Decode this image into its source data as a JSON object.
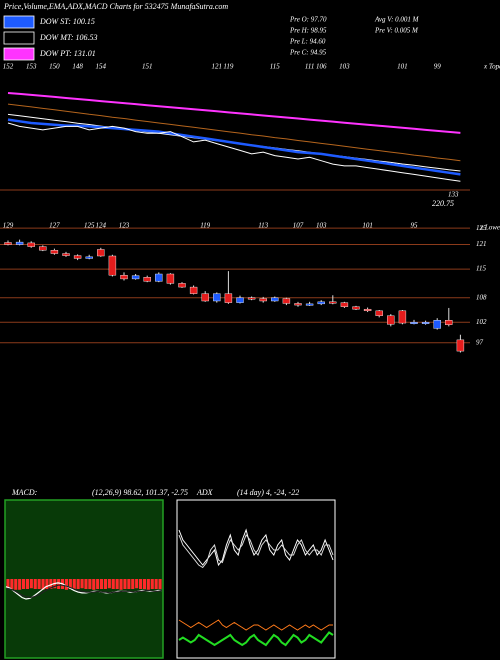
{
  "header": {
    "title": "Price,Volume,EMA,ADX,MACD Charts for 532475 MunafaSutra.com",
    "legend": [
      {
        "label": "DOW ST: 100.15",
        "color": "#1e5bff"
      },
      {
        "label": "DOW MT: 106.53",
        "color": "#000000"
      },
      {
        "label": "DOW PT: 131.01",
        "color": "#ff33ff"
      }
    ],
    "info": [
      "Pre  O: 97.70",
      "Pre  H: 98.95",
      "Pre  L: 94.60",
      "Pre  C: 94.95"
    ],
    "volume": [
      "Avg V: 0.001 M",
      "Pre  V: 0.005 M"
    ]
  },
  "chart_data": [
    {
      "type": "line",
      "categories": [
        "152",
        null,
        "153",
        null,
        "150",
        null,
        "148",
        null,
        "154",
        null,
        null,
        null,
        "151",
        null,
        null,
        null,
        null,
        null,
        "121",
        "119",
        null,
        null,
        null,
        "115",
        null,
        null,
        "111",
        "106",
        null,
        "103",
        null,
        null,
        null,
        null,
        "101",
        null,
        null,
        "99",
        null,
        null
      ],
      "corner_label": "x Topa",
      "annotations": [
        "133",
        "220.75"
      ],
      "ylim": [
        90,
        160
      ],
      "series": [
        {
          "name": "DOW PT: 131.01",
          "color": "#ff33ff",
          "values": [
            149.5,
            149,
            148.4,
            147.8,
            147.2,
            146.6,
            146,
            145.4,
            144.8,
            144.2,
            143.6,
            143,
            142.4,
            141.8,
            141.2,
            140.6,
            140,
            139.4,
            138.8,
            138.2,
            137.6,
            137,
            136.4,
            135.8,
            135.2,
            134.6,
            134,
            133.4,
            132.8,
            132.2,
            131.6,
            131,
            130.4,
            129.8,
            129.2,
            128.6,
            128,
            127.4,
            126.8,
            126.2
          ]
        },
        {
          "color": "#b5651d",
          "values": [
            143,
            142.2,
            141.4,
            140.5,
            139.7,
            138.8,
            138,
            137.1,
            136.3,
            135.4,
            134.6,
            133.7,
            132.9,
            132,
            131.2,
            130.3,
            129.5,
            128.6,
            127.8,
            126.9,
            126.1,
            125.2,
            124.4,
            123.5,
            122.7,
            121.8,
            121,
            120.1,
            119.3,
            118.4,
            117.6,
            116.7,
            115.9,
            115,
            114.2,
            113.3,
            112.5,
            111.6,
            110.8,
            110
          ]
        },
        {
          "name": "DOW MT: 106.53",
          "color": "#ffffff",
          "values": [
            137,
            136.2,
            135.3,
            134.5,
            133.6,
            132.8,
            131.9,
            131.1,
            130.2,
            129.4,
            128.5,
            127.7,
            126.8,
            126,
            125.1,
            124.3,
            123.4,
            122.6,
            121.7,
            120.9,
            120,
            119.2,
            118.3,
            117.5,
            116.6,
            115.8,
            114.9,
            114.1,
            113.2,
            112.4,
            111.5,
            110.7,
            109.8,
            109,
            108.1,
            107.3,
            106.4,
            105.6,
            104.7,
            104
          ]
        },
        {
          "name": "DOW ST: 100.15",
          "color": "#1e5bff",
          "values": [
            134,
            133,
            132,
            131.5,
            131,
            130.5,
            130.5,
            130,
            129.5,
            129,
            128.5,
            128,
            127.5,
            127,
            126,
            125,
            124,
            123,
            122,
            121,
            120,
            119,
            118,
            117,
            116,
            115,
            114.5,
            114,
            113,
            112,
            111,
            110,
            109,
            108,
            107,
            106,
            105,
            104,
            103,
            102
          ]
        },
        {
          "color": "#ffffff",
          "values": [
            132,
            130,
            129,
            128,
            129,
            130,
            130,
            128,
            129,
            130,
            129,
            127,
            126,
            126,
            127,
            124,
            121,
            122,
            120,
            118,
            116,
            114,
            115,
            113,
            112,
            111,
            112,
            110,
            108,
            107,
            107,
            106,
            105,
            104,
            103,
            102,
            101,
            100,
            99,
            98
          ]
        }
      ]
    },
    {
      "type": "candlestick",
      "categories": [
        "129",
        null,
        null,
        null,
        "127",
        null,
        null,
        "125",
        "124",
        null,
        "123",
        null,
        null,
        null,
        null,
        null,
        null,
        "119",
        null,
        null,
        null,
        null,
        "113",
        null,
        null,
        "107",
        null,
        "103",
        null,
        null,
        null,
        "101",
        null,
        null,
        null,
        "95",
        null,
        null,
        null,
        null
      ],
      "corner_label": "x Lowes",
      "up_color": "#1e5bff",
      "down_color": "#e51c1c",
      "ylim": [
        94,
        127
      ],
      "yticks": [
        125,
        121,
        115,
        108,
        102,
        97
      ],
      "open": [
        121.5,
        121.0,
        121.4,
        120.5,
        119.6,
        118.8,
        118.3,
        117.6,
        119.8,
        118.2,
        113.5,
        112.6,
        113.0,
        112.0,
        113.8,
        111.5,
        110.6,
        109.0,
        107.2,
        109.0,
        106.8,
        108.0,
        107.8,
        107.2,
        107.8,
        106.6,
        106.2,
        106.5,
        107.0,
        106.8,
        105.8,
        105.2,
        104.8,
        103.6,
        104.8,
        101.8,
        101.8,
        100.5,
        102.5,
        97.7
      ],
      "high": [
        122.0,
        122.2,
        121.8,
        120.8,
        120.0,
        119.2,
        118.6,
        118.5,
        120.2,
        118.5,
        114.2,
        113.8,
        113.4,
        114.2,
        114.0,
        111.8,
        111.0,
        109.6,
        109.3,
        114.5,
        108.5,
        108.3,
        108.2,
        108.3,
        108.0,
        107.0,
        107.0,
        107.4,
        108.6,
        107.0,
        106.0,
        105.6,
        105.0,
        104.0,
        105.0,
        102.6,
        102.4,
        103.0,
        105.5,
        98.95
      ],
      "low": [
        120.8,
        120.8,
        120.2,
        119.4,
        118.5,
        118.0,
        117.2,
        117.4,
        118.0,
        113.2,
        112.2,
        112.4,
        111.8,
        111.8,
        111.2,
        110.4,
        108.8,
        107.0,
        106.8,
        106.5,
        106.6,
        107.4,
        106.8,
        107.0,
        106.2,
        105.8,
        106.0,
        106.2,
        106.4,
        105.5,
        105.0,
        104.5,
        103.2,
        101.0,
        101.5,
        101.5,
        101.4,
        100.2,
        101.0,
        94.6
      ],
      "close": [
        121.0,
        121.6,
        120.5,
        119.6,
        118.8,
        118.3,
        117.6,
        118.0,
        118.2,
        113.5,
        112.6,
        113.4,
        112.0,
        113.8,
        111.5,
        110.6,
        109.0,
        107.2,
        109.0,
        106.8,
        108.0,
        107.8,
        107.2,
        108.0,
        106.6,
        106.2,
        106.5,
        107.0,
        106.8,
        105.8,
        105.2,
        104.8,
        103.6,
        101.5,
        101.8,
        102.0,
        102.0,
        102.5,
        101.4,
        94.95
      ]
    },
    {
      "type": "macd",
      "label": "MACD:",
      "params": "(12,26,9) 98.62, 101.37, -2.75",
      "ylim": [
        -10,
        10
      ],
      "histogram": {
        "color": "#ff2a2a",
        "values": [
          -1.3,
          -1.3,
          -1.4,
          -1.4,
          -1.3,
          -1.3,
          -1.2,
          -1.3,
          -1.3,
          -1.4,
          -1.3,
          -1.3,
          -1.2,
          -1.3,
          -1.3,
          -1.4,
          -1.3,
          -1.3,
          -1.3,
          -1.2,
          -1.3,
          -1.3,
          -1.4,
          -1.3,
          -1.3,
          -1.3,
          -1.2,
          -1.3,
          -1.3,
          -1.4,
          -1.3,
          -1.3,
          -1.3,
          -1.2,
          -1.3,
          -1.3,
          -1.4,
          -1.3,
          -1.3,
          -1.3
        ]
      },
      "series": [
        {
          "color": "#ffffff",
          "values": [
            -1.0,
            -1.2,
            -1.6,
            -2.0,
            -2.4,
            -2.6,
            -2.5,
            -2.2,
            -1.8,
            -1.4,
            -1.0,
            -0.8,
            -0.6,
            -0.5,
            -0.6,
            -0.9,
            -1.2,
            -1.5,
            -1.7,
            -1.8,
            -1.8,
            -1.7,
            -1.6,
            -1.6,
            -1.7,
            -1.8,
            -1.8,
            -1.7,
            -1.6,
            -1.6,
            -1.6,
            -1.7,
            -1.7,
            -1.6,
            -1.5,
            -1.5,
            -1.6,
            -1.6,
            -1.5,
            -1.5
          ]
        },
        {
          "color": "#222222",
          "values": [
            -1.2,
            -1.3,
            -1.5,
            -1.8,
            -2.1,
            -2.3,
            -2.4,
            -2.3,
            -2.1,
            -1.8,
            -1.5,
            -1.2,
            -1.0,
            -0.8,
            -0.8,
            -0.9,
            -1.1,
            -1.3,
            -1.5,
            -1.6,
            -1.7,
            -1.7,
            -1.7,
            -1.6,
            -1.7,
            -1.7,
            -1.8,
            -1.7,
            -1.7,
            -1.6,
            -1.6,
            -1.6,
            -1.7,
            -1.6,
            -1.6,
            -1.5,
            -1.5,
            -1.6,
            -1.6,
            -1.5
          ]
        }
      ]
    },
    {
      "type": "adx",
      "label": "ADX",
      "params": "(14 day) 4, -24, -22",
      "ylim": [
        0,
        60
      ],
      "series": [
        {
          "color": "#ffffff",
          "values": [
            50,
            46,
            44,
            42,
            40,
            38,
            36,
            38,
            40,
            42,
            36,
            38,
            44,
            48,
            42,
            40,
            46,
            50,
            44,
            40,
            42,
            46,
            48,
            42,
            40,
            44,
            46,
            40,
            38,
            42,
            46,
            44,
            40,
            42,
            44,
            40,
            42,
            46,
            42,
            38
          ]
        },
        {
          "color": "#dddddd",
          "values": [
            48,
            44,
            42,
            40,
            38,
            36,
            35,
            37,
            42,
            44,
            38,
            37,
            42,
            46,
            44,
            42,
            44,
            48,
            46,
            42,
            40,
            44,
            46,
            44,
            42,
            42,
            44,
            42,
            40,
            40,
            44,
            46,
            42,
            40,
            42,
            42,
            40,
            44,
            44,
            40
          ]
        },
        {
          "color": "#ff7a1a",
          "values": [
            14,
            13,
            12,
            11,
            12,
            13,
            12,
            11,
            12,
            13,
            14,
            12,
            11,
            12,
            13,
            12,
            11,
            10,
            11,
            12,
            12,
            11,
            10,
            11,
            12,
            11,
            10,
            11,
            12,
            11,
            10,
            11,
            12,
            11,
            12,
            11,
            10,
            11,
            12,
            12
          ]
        },
        {
          "color": "#22dd22",
          "values": [
            6,
            7,
            6,
            5,
            6,
            8,
            7,
            6,
            5,
            4,
            5,
            6,
            7,
            8,
            6,
            5,
            4,
            5,
            7,
            8,
            6,
            5,
            4,
            6,
            8,
            7,
            5,
            4,
            6,
            8,
            7,
            5,
            6,
            8,
            7,
            6,
            5,
            7,
            9,
            8
          ]
        }
      ]
    }
  ]
}
